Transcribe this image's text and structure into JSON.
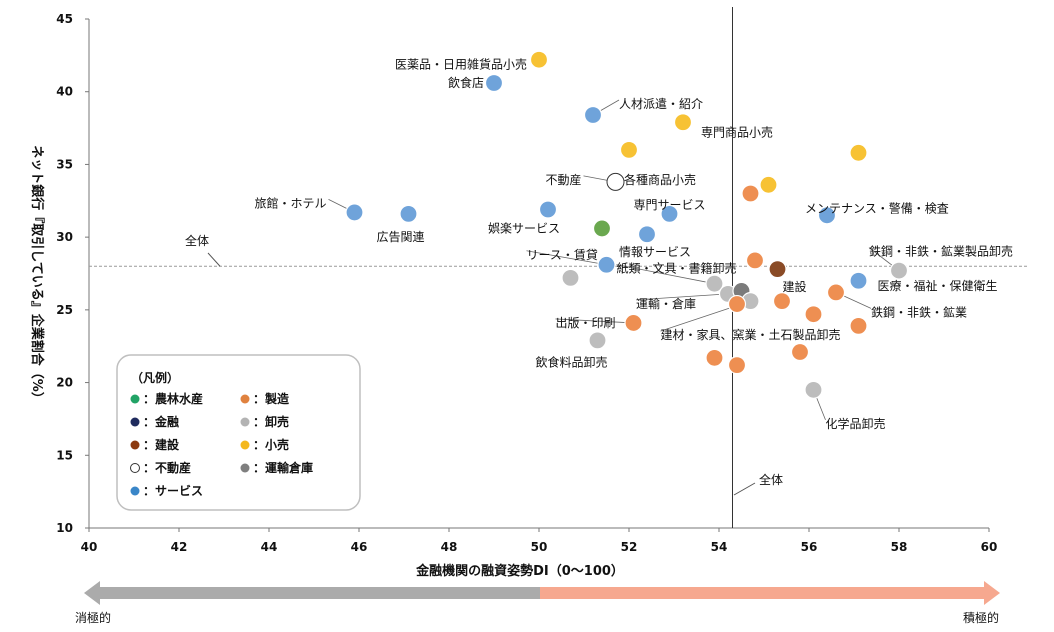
{
  "chart_data": {
    "type": "scatter",
    "xlabel": "金融機関の融資姿勢DI（0〜100）",
    "ylabel": "ネット銀行『取引している』企業割合（%）",
    "xlim": [
      40,
      60
    ],
    "ylim": [
      10,
      45
    ],
    "xticks": [
      "40",
      "42",
      "44",
      "46",
      "48",
      "50",
      "52",
      "54",
      "56",
      "58",
      "60"
    ],
    "yticks": [
      "10",
      "15",
      "20",
      "25",
      "30",
      "35",
      "40",
      "45"
    ],
    "grid": false,
    "reference_lines": [
      {
        "orientation": "horizontal",
        "value": 28.0,
        "label": "全体"
      },
      {
        "orientation": "vertical",
        "value": 54.3,
        "label": "全体"
      }
    ],
    "arrow": {
      "left_label": "消極的",
      "right_label": "積極的"
    },
    "legend": {
      "title": "（凡例）",
      "placement": "bottom-left",
      "items": [
        {
          "key": "agri",
          "label": "：農林水産",
          "color": "#21a366",
          "open": false
        },
        {
          "key": "mfg",
          "label": "：製造",
          "color": "#e0823f",
          "open": false
        },
        {
          "key": "fin",
          "label": "：金融",
          "color": "#1f2b5e",
          "open": false
        },
        {
          "key": "whole",
          "label": "：卸売",
          "color": "#b3b3b3",
          "open": false
        },
        {
          "key": "const",
          "label": "：建設",
          "color": "#8c3a10",
          "open": false
        },
        {
          "key": "retail",
          "label": "：小売",
          "color": "#f4b81c",
          "open": false
        },
        {
          "key": "realestate",
          "label": "：不動産",
          "color": "#ffffff",
          "open": true
        },
        {
          "key": "transport",
          "label": "：運輸倉庫",
          "color": "#7f7f7f",
          "open": false
        },
        {
          "key": "service",
          "label": "：サービス",
          "color": "#3a86c8",
          "open": false
        }
      ]
    },
    "colors": {
      "agri": "#6aa84f",
      "mfg": "#ee8f52",
      "fin": "#2f3b70",
      "whole": "#bdbdbd",
      "const": "#8a4b26",
      "retail": "#f7c234",
      "realestate": "#ffffff",
      "transport": "#7b7b7b",
      "service": "#6fa3da"
    },
    "points": [
      {
        "x": 50.0,
        "y": 42.2,
        "cat": "retail",
        "label": "医薬品・日用雑貨品小売"
      },
      {
        "x": 49.0,
        "y": 40.6,
        "cat": "service",
        "label": "飲食店"
      },
      {
        "x": 51.2,
        "y": 38.4,
        "cat": "service",
        "label": "人材派遣・紹介"
      },
      {
        "x": 53.2,
        "y": 37.9,
        "cat": "retail",
        "label": "専門商品小売"
      },
      {
        "x": 52.0,
        "y": 36.0,
        "cat": "retail",
        "label": "各種商品小売"
      },
      {
        "x": 57.1,
        "y": 35.8,
        "cat": "retail",
        "label": ""
      },
      {
        "x": 51.7,
        "y": 33.8,
        "cat": "realestate",
        "label": "不動産"
      },
      {
        "x": 55.1,
        "y": 33.6,
        "cat": "retail",
        "label": ""
      },
      {
        "x": 54.7,
        "y": 33.0,
        "cat": "mfg",
        "label": ""
      },
      {
        "x": 45.9,
        "y": 31.7,
        "cat": "service",
        "label": "旅館・ホテル"
      },
      {
        "x": 47.1,
        "y": 31.6,
        "cat": "service",
        "label": "広告関連"
      },
      {
        "x": 50.2,
        "y": 31.9,
        "cat": "service",
        "label": "娯楽サービス"
      },
      {
        "x": 52.9,
        "y": 31.6,
        "cat": "service",
        "label": "専門サービス"
      },
      {
        "x": 56.4,
        "y": 31.5,
        "cat": "service",
        "label": "メンテナンス・警備・検査"
      },
      {
        "x": 51.4,
        "y": 30.6,
        "cat": "agri",
        "label": ""
      },
      {
        "x": 52.4,
        "y": 30.2,
        "cat": "service",
        "label": "情報サービス"
      },
      {
        "x": 51.5,
        "y": 28.1,
        "cat": "service",
        "label": "リース・賃貸"
      },
      {
        "x": 54.8,
        "y": 28.4,
        "cat": "mfg",
        "label": ""
      },
      {
        "x": 55.3,
        "y": 27.8,
        "cat": "const",
        "label": "建設"
      },
      {
        "x": 50.7,
        "y": 27.2,
        "cat": "whole",
        "label": ""
      },
      {
        "x": 53.9,
        "y": 26.8,
        "cat": "whole",
        "label": "紙類・文具・書籍卸売"
      },
      {
        "x": 58.0,
        "y": 27.7,
        "cat": "whole",
        "label": "鉄鋼・非鉄・鉱業製品卸売"
      },
      {
        "x": 57.1,
        "y": 27.0,
        "cat": "service",
        "label": "医療・福祉・保健衛生"
      },
      {
        "x": 54.2,
        "y": 26.1,
        "cat": "whole",
        "label": "運輸・倉庫"
      },
      {
        "x": 54.5,
        "y": 26.3,
        "cat": "transport",
        "label": ""
      },
      {
        "x": 54.7,
        "y": 25.6,
        "cat": "whole",
        "label": "建材・家具、窯業・土石製品卸売"
      },
      {
        "x": 54.4,
        "y": 25.4,
        "cat": "mfg",
        "label": ""
      },
      {
        "x": 55.4,
        "y": 25.6,
        "cat": "mfg",
        "label": ""
      },
      {
        "x": 56.6,
        "y": 26.2,
        "cat": "mfg",
        "label": "鉄鋼・非鉄・鉱業"
      },
      {
        "x": 56.1,
        "y": 24.7,
        "cat": "mfg",
        "label": ""
      },
      {
        "x": 57.1,
        "y": 23.9,
        "cat": "mfg",
        "label": ""
      },
      {
        "x": 52.1,
        "y": 24.1,
        "cat": "mfg",
        "label": "出版・印刷"
      },
      {
        "x": 51.3,
        "y": 22.9,
        "cat": "whole",
        "label": "飲食料品卸売"
      },
      {
        "x": 55.8,
        "y": 22.1,
        "cat": "mfg",
        "label": ""
      },
      {
        "x": 53.9,
        "y": 21.7,
        "cat": "mfg",
        "label": ""
      },
      {
        "x": 54.4,
        "y": 21.2,
        "cat": "mfg",
        "label": ""
      },
      {
        "x": 56.1,
        "y": 19.5,
        "cat": "whole",
        "label": "化学品卸売"
      }
    ]
  }
}
